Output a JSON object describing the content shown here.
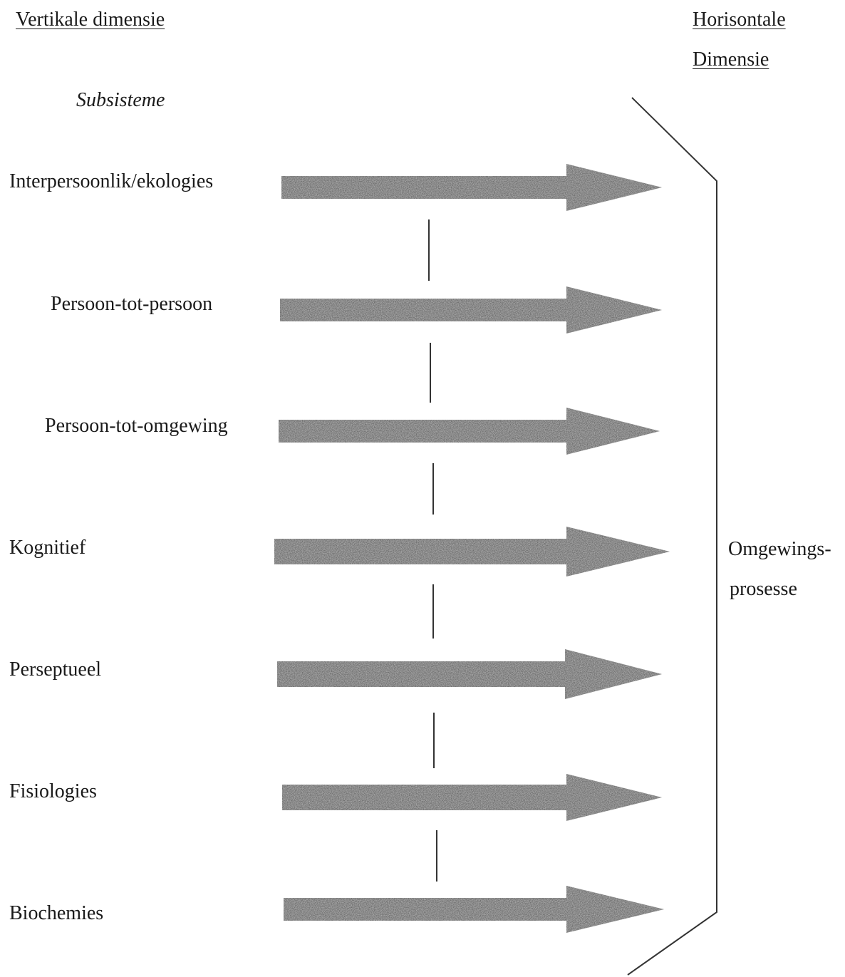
{
  "headers": {
    "vertical": "Vertikale dimensie",
    "horizontal_line1": "Horisontale",
    "horizontal_line2": "Dimensie",
    "subsystems": "Subsisteme"
  },
  "levels": [
    "Interpersoonlik/ekologies",
    "Persoon-tot-persoon",
    "Persoon-tot-omgewing",
    "Kognitief",
    "Perseptueel",
    "Fisiologies",
    "Biochemies"
  ],
  "bracket_label": {
    "line1": "Omgewings-",
    "line2": "prosesse"
  },
  "colors": {
    "arrow_fill": "#6e6e6e",
    "line": "#333333",
    "text": "#1a1a1a"
  }
}
